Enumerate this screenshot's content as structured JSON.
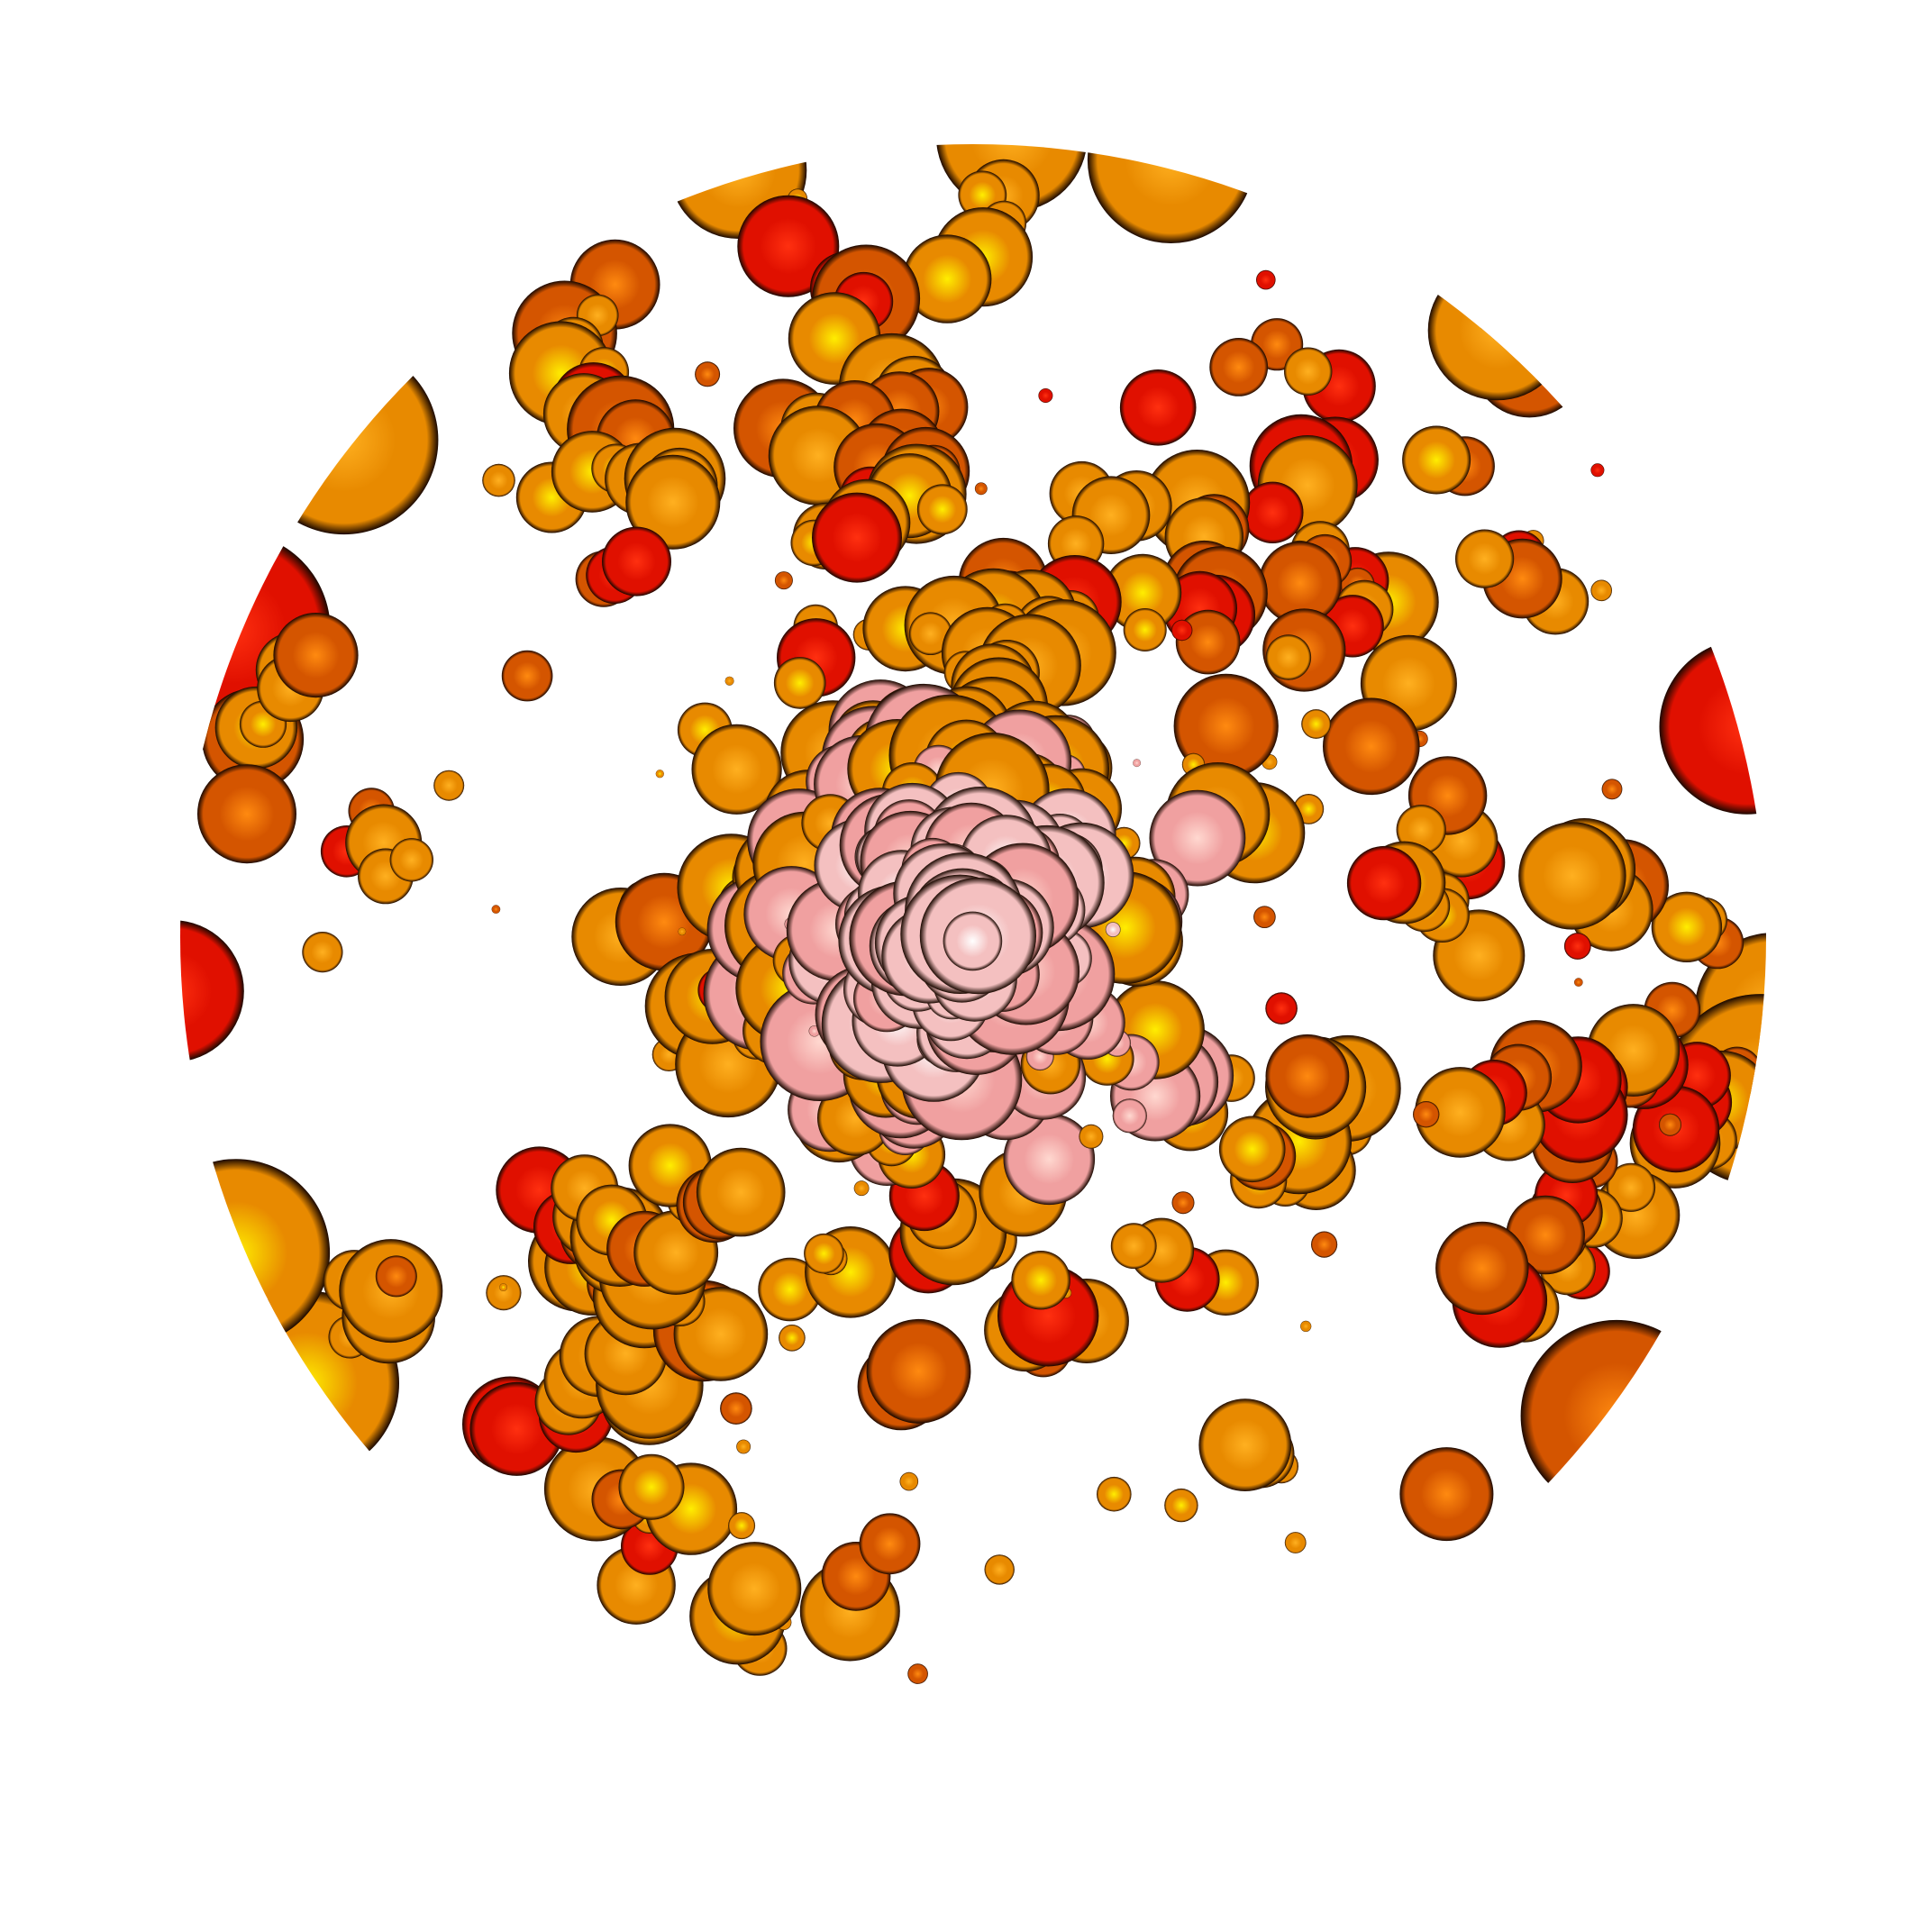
{
  "image": {
    "subject": "blob-cluster",
    "background_color": "#ffffff",
    "palette": {
      "core_white": "#ffffff",
      "core_pink": "#f0a0a0",
      "yellow": "#ffee00",
      "orange": "#e88a00",
      "deep_orange": "#d45500",
      "red": "#e01000",
      "shadow": "#1a0800"
    }
  }
}
